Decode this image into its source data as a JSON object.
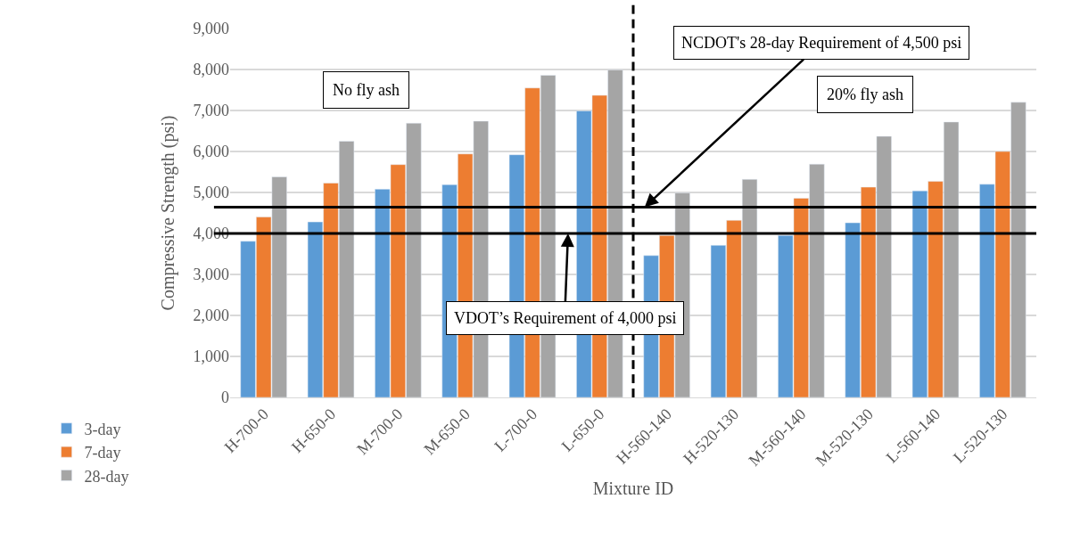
{
  "chart_data": {
    "type": "bar",
    "xlabel": "Mixture ID",
    "ylabel": "Compressive Strength (psi)",
    "categories": [
      "H-700-0",
      "H-650-0",
      "M-700-0",
      "M-650-0",
      "L-700-0",
      "L-650-0",
      "H-560-140",
      "H-520-130",
      "M-560-140",
      "M-520-130",
      "L-560-140",
      "L-520-130"
    ],
    "series": [
      {
        "name": "3-day",
        "color": "#5b9bd5",
        "values": [
          3810,
          4280,
          5080,
          5190,
          5920,
          6990,
          3460,
          3710,
          3950,
          4260,
          5040,
          5200
        ]
      },
      {
        "name": "7-day",
        "color": "#ed7d31",
        "values": [
          4400,
          5230,
          5680,
          5940,
          7550,
          7370,
          3950,
          4320,
          4860,
          5130,
          5270,
          6000
        ]
      },
      {
        "name": "28-day",
        "color": "#a5a5a5",
        "values": [
          5380,
          6250,
          6690,
          6740,
          7860,
          7990,
          4990,
          5320,
          5690,
          6370,
          6720,
          7200
        ]
      }
    ],
    "ylim": [
      0,
      9000
    ],
    "yticks": [
      {
        "value": 0,
        "label": "0"
      },
      {
        "value": 1000,
        "label": "1,000"
      },
      {
        "value": 2000,
        "label": "2,000"
      },
      {
        "value": 3000,
        "label": "3,000"
      },
      {
        "value": 4000,
        "label": "4,000"
      },
      {
        "value": 5000,
        "label": "5,000"
      },
      {
        "value": 6000,
        "label": "6,000"
      },
      {
        "value": 7000,
        "label": "7,000"
      },
      {
        "value": 8000,
        "label": "8,000"
      },
      {
        "value": 9000,
        "label": "9,000"
      }
    ],
    "grid": "y",
    "legend": "left",
    "ref_lines": [
      {
        "axis": "y",
        "value": 4000,
        "label": "VDOT’s Requirement of 4,000 psi",
        "color": "#000000",
        "line_style": "solid"
      },
      {
        "axis": "y",
        "value": 4640,
        "label": "NCDOT's 28-day Requirement of 4,500 psi",
        "color": "#000000",
        "line_style": "solid"
      }
    ],
    "annotations": [
      "No fly ash",
      "20% fly ash"
    ]
  }
}
